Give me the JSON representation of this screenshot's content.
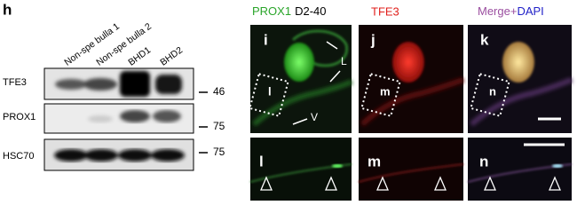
{
  "figure_label": "h",
  "blot": {
    "lanes": [
      "Non-spe bulla 1",
      "Non-spe bulla 2",
      "BHD1",
      "BHD2"
    ],
    "rows": [
      {
        "label": "TFE3",
        "marker": 46
      },
      {
        "label": "PROX1",
        "marker": 75
      },
      {
        "label": "HSC70",
        "marker": 75
      }
    ]
  },
  "microscopy": {
    "headers": [
      [
        "PROX1",
        "D2-40"
      ],
      [
        "TFE3"
      ],
      [
        "Merge+",
        "DAPI"
      ]
    ],
    "panels": [
      "i",
      "j",
      "k",
      "l",
      "m",
      "n"
    ],
    "insets": [
      "l",
      "m",
      "n"
    ],
    "arrows": [
      "L",
      "V"
    ]
  }
}
